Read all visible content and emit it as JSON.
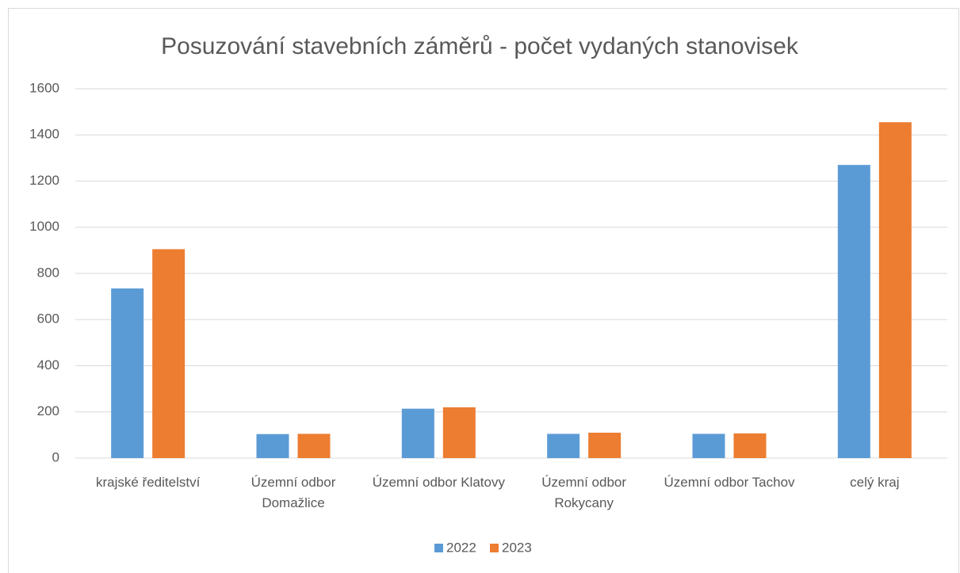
{
  "chart_data": {
    "type": "bar",
    "title": "Posuzování stavebních záměrů - počet vydaných stanovisek",
    "categories": [
      "krajské ředitelství",
      "Územní odbor Domažlice",
      "Územní odbor Klatovy",
      "Územní odbor Rokycany",
      "Územní odbor Tachov",
      "celý kraj"
    ],
    "series": [
      {
        "name": "2022",
        "color": "#5b9bd5",
        "values": [
          735,
          104,
          214,
          105,
          105,
          1270
        ]
      },
      {
        "name": "2023",
        "color": "#ed7d31",
        "values": [
          905,
          105,
          220,
          110,
          107,
          1455
        ]
      }
    ],
    "ylim": [
      0,
      1600
    ],
    "yticks": [
      0,
      200,
      400,
      600,
      800,
      1000,
      1200,
      1400,
      1600
    ],
    "grid": true,
    "legend": "bottom"
  }
}
